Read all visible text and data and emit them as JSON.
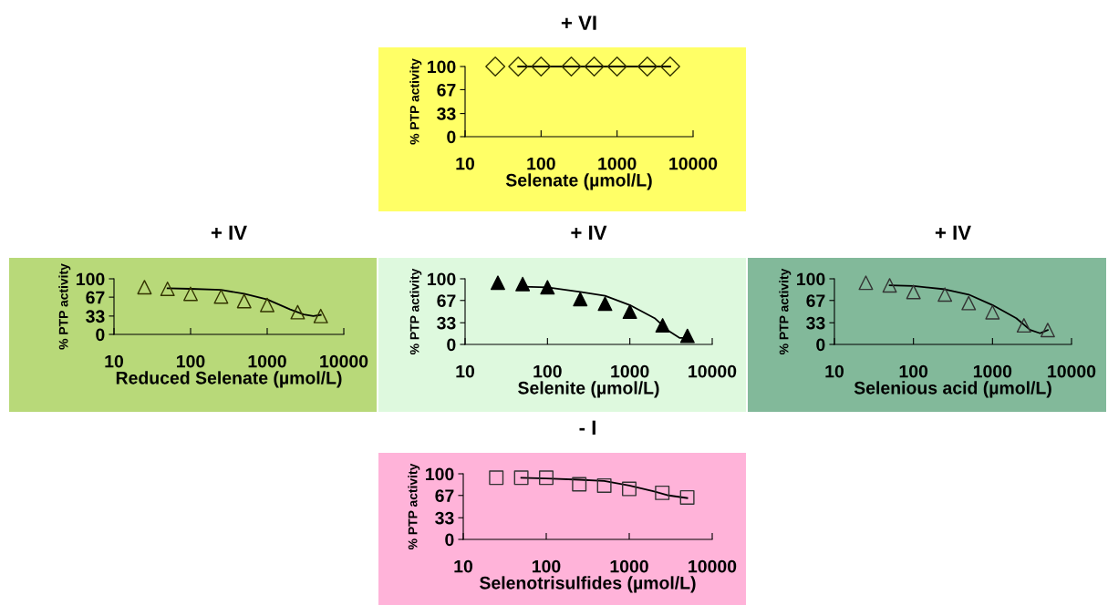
{
  "chart_data": [
    {
      "type": "scatter",
      "title": "+ VI",
      "xlabel": "Selenate (µmol/L)",
      "ylabel": "% PTP activity",
      "log": "x",
      "xlim": [
        10,
        10000
      ],
      "xticks": [
        10,
        100,
        1000,
        10000
      ],
      "ylim": [
        0,
        100
      ],
      "yticks": [
        0,
        33,
        67,
        100
      ],
      "grid": false,
      "series": [
        {
          "marker": "diamond",
          "color": "#333300",
          "x": [
            25,
            50,
            100,
            250,
            500,
            1000,
            2500,
            5000
          ],
          "values": [
            100,
            100,
            100,
            100,
            100,
            100,
            100,
            100
          ]
        },
        {
          "type": "line",
          "marker": "none",
          "color": "#000000",
          "x": [
            50,
            5000
          ],
          "values": [
            100,
            100
          ]
        }
      ]
    },
    {
      "type": "scatter",
      "title": "+ IV",
      "xlabel": "Reduced Selenate (µmol/L)",
      "ylabel": "% PTP activity",
      "log": "x",
      "xlim": [
        10,
        10000
      ],
      "xticks": [
        10,
        100,
        1000,
        10000
      ],
      "ylim": [
        0,
        100
      ],
      "yticks": [
        0,
        33,
        67,
        100
      ],
      "grid": false,
      "series": [
        {
          "marker": "triangle",
          "color": "#333300",
          "x": [
            25,
            50,
            100,
            250,
            500,
            1000,
            2500,
            5000
          ],
          "values": [
            85,
            82,
            73,
            68,
            60,
            53,
            40,
            33
          ]
        },
        {
          "type": "line",
          "marker": "none",
          "color": "#000000",
          "x": [
            50,
            100,
            250,
            500,
            1000,
            2000,
            3000,
            4000,
            5000
          ],
          "values": [
            83,
            82,
            80,
            73,
            63,
            45,
            36,
            33,
            35
          ]
        }
      ]
    },
    {
      "type": "scatter",
      "title": "+ IV",
      "xlabel": "Selenite (µmol/L)",
      "ylabel": "% PTP activity",
      "log": "x",
      "xlim": [
        10,
        10000
      ],
      "xticks": [
        10,
        100,
        1000,
        10000
      ],
      "ylim": [
        0,
        100
      ],
      "yticks": [
        0,
        33,
        67,
        100
      ],
      "grid": false,
      "series": [
        {
          "marker": "triangle",
          "color": "#000000",
          "x": [
            25,
            50,
            100,
            250,
            500,
            1000,
            2500,
            5000
          ],
          "values": [
            94,
            92,
            87,
            69,
            62,
            50,
            29,
            13
          ]
        },
        {
          "type": "line",
          "marker": "none",
          "color": "#000000",
          "x": [
            50,
            100,
            250,
            500,
            1000,
            2000,
            3000,
            4000,
            5000
          ],
          "values": [
            88,
            87,
            80,
            74,
            60,
            40,
            20,
            10,
            10
          ]
        }
      ]
    },
    {
      "type": "scatter",
      "title": "+ IV",
      "xlabel": "Selenious acid (µmol/L)",
      "ylabel": "% PTP activity",
      "log": "x",
      "xlim": [
        10,
        10000
      ],
      "xticks": [
        10,
        100,
        1000,
        10000
      ],
      "ylim": [
        0,
        100
      ],
      "yticks": [
        0,
        33,
        67,
        100
      ],
      "grid": false,
      "series": [
        {
          "marker": "triangle",
          "color": "#333333",
          "x": [
            25,
            50,
            100,
            250,
            500,
            1000,
            2500,
            5000
          ],
          "values": [
            94,
            90,
            80,
            76,
            63,
            49,
            29,
            22
          ]
        },
        {
          "type": "line",
          "marker": "none",
          "color": "#000000",
          "x": [
            50,
            100,
            250,
            500,
            1000,
            2000,
            3000,
            4000,
            5000
          ],
          "values": [
            90,
            89,
            84,
            76,
            60,
            40,
            22,
            17,
            22
          ]
        }
      ]
    },
    {
      "type": "scatter",
      "title": "- I",
      "xlabel": "Selenotrisulfides (µmol/L)",
      "ylabel": "% PTP activity",
      "log": "x",
      "xlim": [
        10,
        10000
      ],
      "xticks": [
        10,
        100,
        1000,
        10000
      ],
      "ylim": [
        0,
        100
      ],
      "yticks": [
        0,
        33,
        67,
        100
      ],
      "grid": false,
      "series": [
        {
          "marker": "square",
          "color": "#333333",
          "x": [
            25,
            50,
            100,
            250,
            500,
            1000,
            2500,
            5000
          ],
          "values": [
            94,
            94,
            94,
            84,
            82,
            77,
            71,
            64
          ]
        },
        {
          "type": "line",
          "marker": "none",
          "color": "#000000",
          "x": [
            50,
            100,
            250,
            500,
            1000,
            2000,
            3000,
            5000
          ],
          "values": [
            94,
            93,
            91,
            89,
            82,
            73,
            67,
            63
          ]
        }
      ]
    }
  ]
}
